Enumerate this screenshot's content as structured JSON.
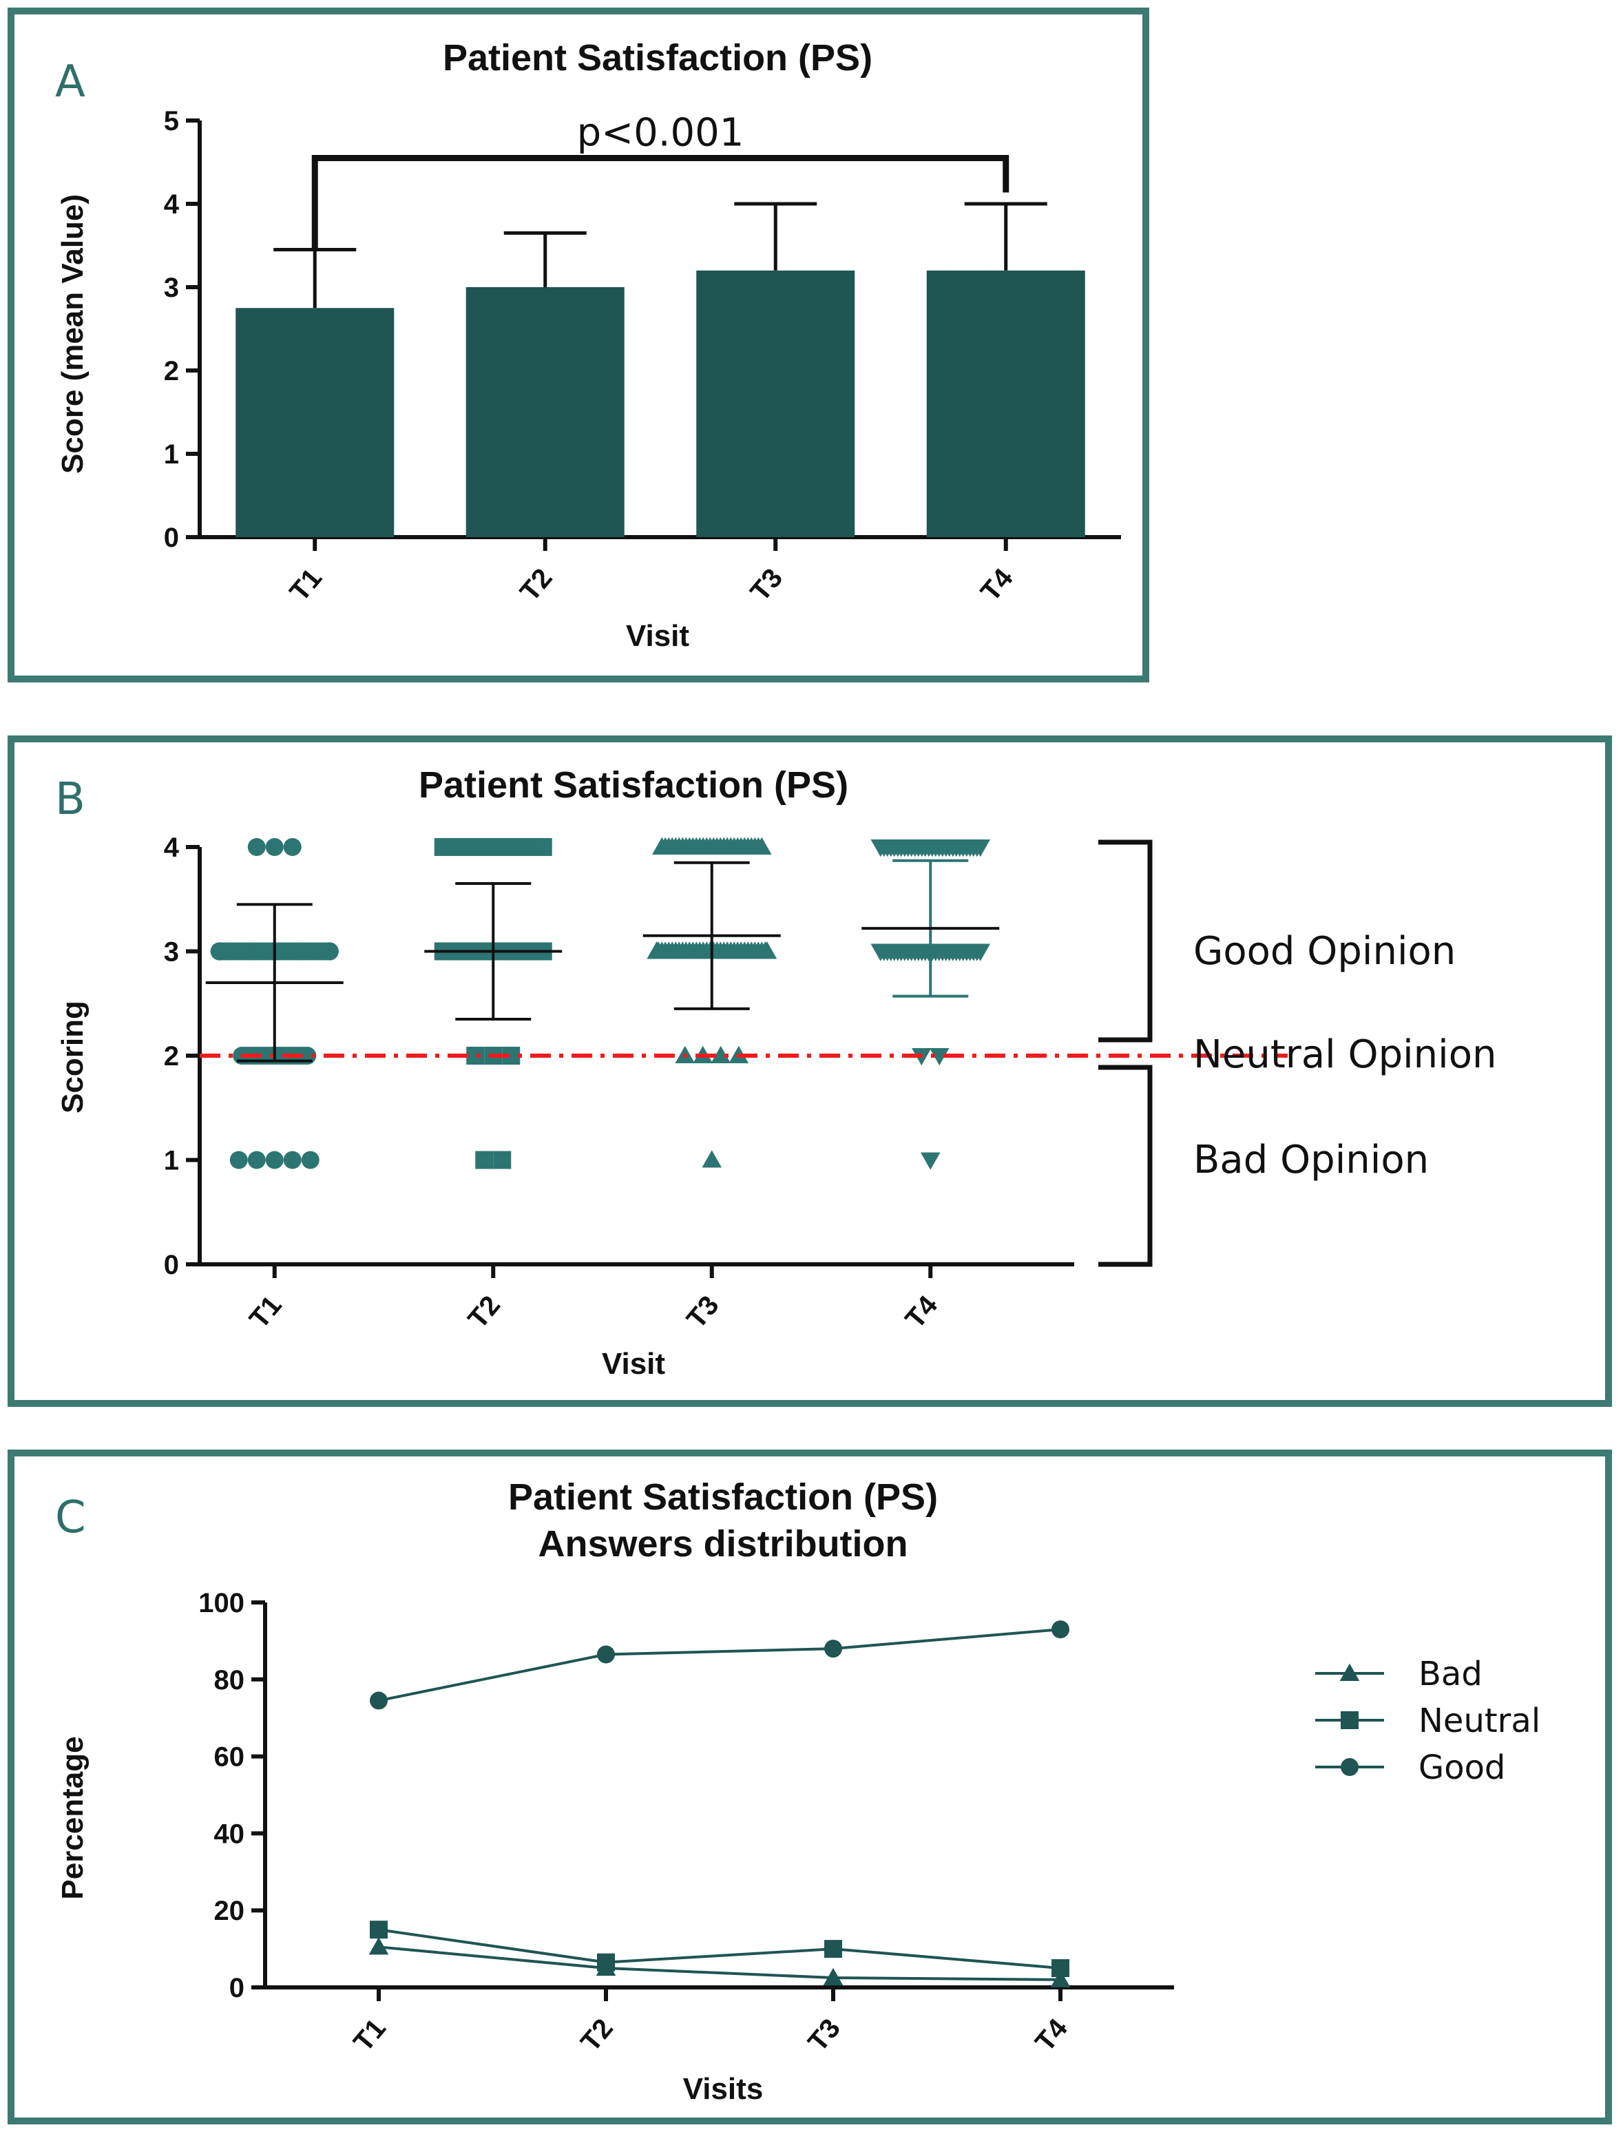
{
  "colors": {
    "bar": "#1f5553",
    "marker": "#2d7572",
    "frame": "#3d7a72",
    "neutral_line": "#ee1c1c",
    "text": "#111111"
  },
  "chart_data": [
    {
      "panel_letter": "A",
      "type": "bar",
      "title": "Patient Satisfaction (PS)",
      "xlabel": "Visit",
      "ylabel": "Score (mean Value)",
      "ylim": [
        0,
        5
      ],
      "yticks": [
        "0",
        "1",
        "2",
        "3",
        "4",
        "5"
      ],
      "categories": [
        "T1",
        "T2",
        "T3",
        "T4"
      ],
      "values": [
        2.75,
        3.0,
        3.2,
        3.2
      ],
      "error_upper": [
        3.45,
        3.65,
        4.0,
        4.0
      ],
      "annotation": {
        "text": "p<0.001",
        "from": "T1",
        "to": "T4",
        "y": 4.55
      }
    },
    {
      "panel_letter": "B",
      "type": "scatter",
      "title": "Patient Satisfaction (PS)",
      "xlabel": "Visit",
      "ylabel": "Scoring",
      "ylim": [
        0,
        4
      ],
      "yticks": [
        "0",
        "1",
        "2",
        "3",
        "4"
      ],
      "categories": [
        "T1",
        "T2",
        "T3",
        "T4"
      ],
      "markers": [
        "circle",
        "square",
        "triangle-up",
        "triangle-down"
      ],
      "mean": [
        2.7,
        3.0,
        3.15,
        3.22
      ],
      "sd_low": [
        1.95,
        2.35,
        2.45,
        2.57
      ],
      "sd_high": [
        3.45,
        3.65,
        3.85,
        3.87
      ],
      "points": [
        {
          "score": 4,
          "count": [
            3,
            30,
            30,
            30
          ]
        },
        {
          "score": 3,
          "count": [
            40,
            30,
            40,
            30
          ]
        },
        {
          "score": 2,
          "count": [
            20,
            3,
            4,
            2
          ]
        },
        {
          "score": 1,
          "count": [
            5,
            2,
            1,
            1
          ]
        }
      ],
      "neutral_line_y": 2,
      "opinions": [
        "Good Opinion",
        "Neutral Opinion",
        "Bad Opinion"
      ]
    },
    {
      "panel_letter": "C",
      "type": "line",
      "title": "Patient Satisfaction (PS)",
      "subtitle": "Answers distribution",
      "xlabel": "Visits",
      "ylabel": "Percentage",
      "ylim": [
        0,
        100
      ],
      "yticks": [
        "0",
        "20",
        "40",
        "60",
        "80",
        "100"
      ],
      "categories": [
        "T1",
        "T2",
        "T3",
        "T4"
      ],
      "series": [
        {
          "name": "Bad",
          "marker": "triangle",
          "values": [
            10.5,
            5,
            2.5,
            2
          ]
        },
        {
          "name": "Neutral",
          "marker": "square",
          "values": [
            15,
            6.5,
            10,
            5
          ]
        },
        {
          "name": "Good",
          "marker": "circle",
          "values": [
            74.5,
            86.5,
            88,
            93
          ]
        }
      ]
    }
  ]
}
